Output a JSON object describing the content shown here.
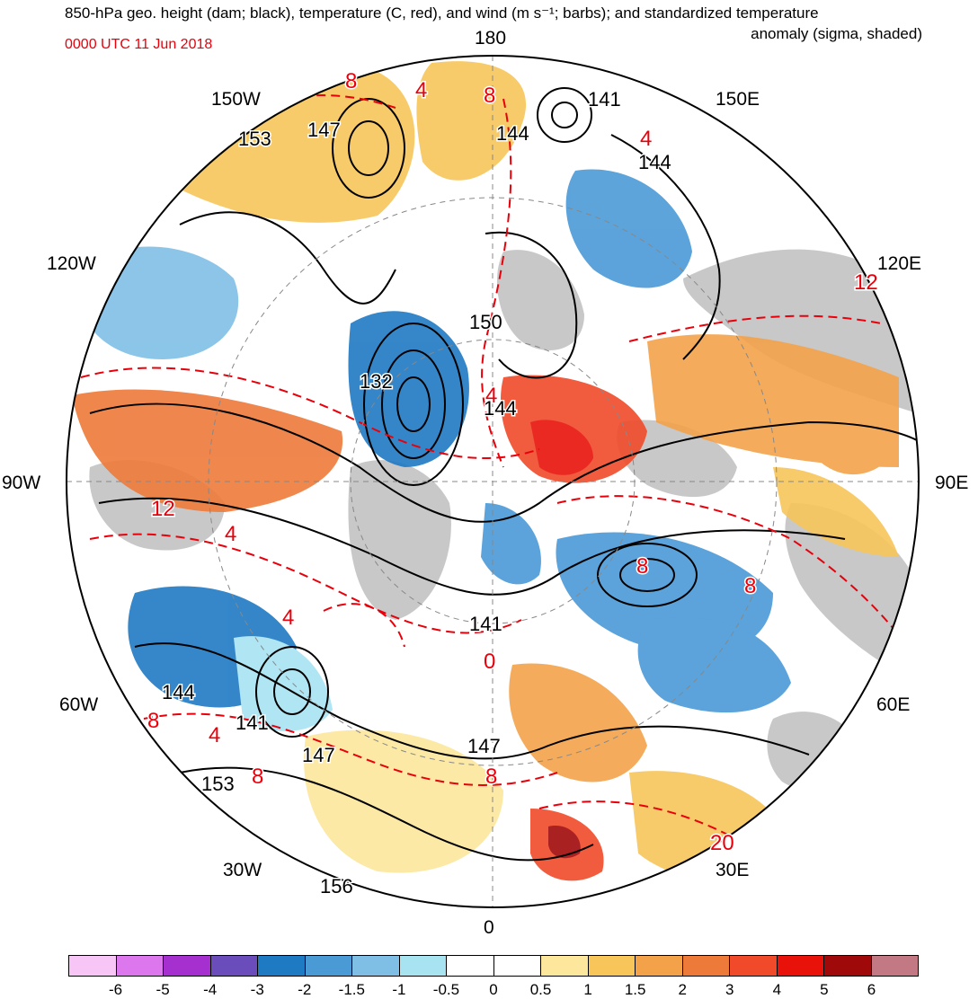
{
  "title": {
    "line1": "850-hPa geo. height (dam; black), temperature (C, red), and wind (m s⁻¹; barbs); and standardized temperature",
    "line2": "anomaly (sigma, shaded)",
    "valid_time": "0000 UTC 11 Jun 2018"
  },
  "longitude_labels": {
    "top": "180",
    "bottom": "0",
    "left": "90W",
    "right": "90E",
    "upper_left_inner": "150W",
    "upper_right_inner": "150E",
    "mid_left_upper": "120W",
    "mid_right_upper": "120E",
    "mid_left_lower": "60W",
    "mid_right_lower": "60E",
    "lower_left_inner": "30W",
    "lower_right_inner": "30E"
  },
  "height_labels": [
    "153",
    "147",
    "141",
    "144",
    "144",
    "150",
    "132",
    "144",
    "141",
    "144",
    "141",
    "147",
    "153",
    "156",
    "147"
  ],
  "temperature_labels": [
    "8",
    "4",
    "8",
    "12",
    "12",
    "4",
    "4",
    "4",
    "8",
    "8",
    "0",
    "4",
    "8",
    "8",
    "4",
    "8",
    "20"
  ],
  "colors": {
    "height_contour": "#000000",
    "temperature_contour": "#e8000b",
    "land": "#c8c8c8"
  },
  "colorbar": {
    "colors": [
      "#f7c6f7",
      "#dd77ee",
      "#a52fcf",
      "#6a4cba",
      "#1f7ac4",
      "#4a9ad6",
      "#7fbfe6",
      "#a8e3f2",
      "#ffffff",
      "#ffffff",
      "#fce79c",
      "#f7c55a",
      "#f3a24a",
      "#ee7a3a",
      "#f04a2a",
      "#e8120b",
      "#a0090a",
      "#c27983"
    ],
    "ticks": [
      "-6",
      "-5",
      "-4",
      "-3",
      "-2",
      "-1.5",
      "-1",
      "-0.5",
      "0",
      "0.5",
      "1",
      "1.5",
      "2",
      "3",
      "4",
      "5",
      "6"
    ]
  }
}
